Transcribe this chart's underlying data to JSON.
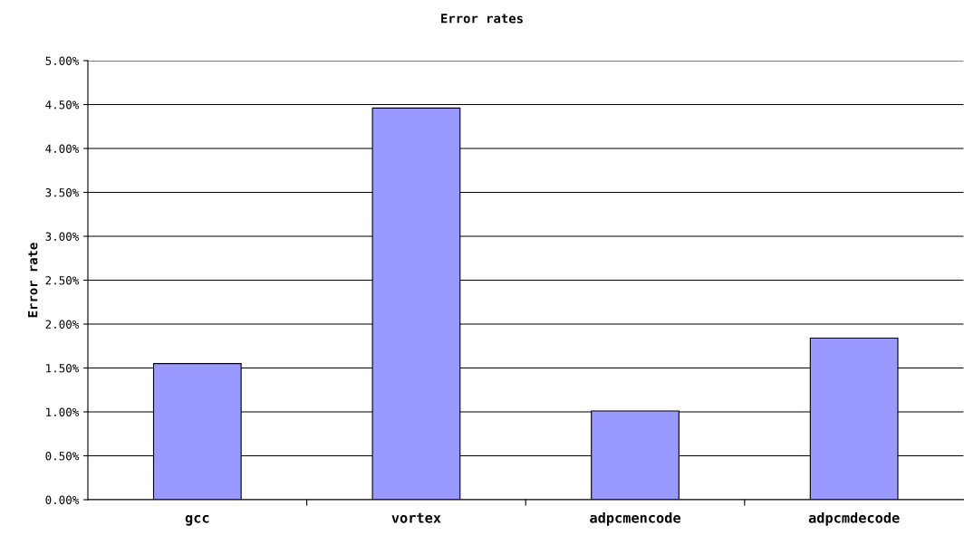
{
  "chart_data": {
    "type": "bar",
    "title": "Error rates",
    "ylabel": "Error rate",
    "categories": [
      "gcc",
      "vortex",
      "adpcmencode",
      "adpcmdecode"
    ],
    "values": [
      1.55,
      4.46,
      1.01,
      1.84
    ],
    "color": "#9999ff",
    "ylim": [
      0,
      5
    ],
    "yticks": [
      {
        "value": 0,
        "label": "0.00%"
      },
      {
        "value": 0.5,
        "label": "0.50%"
      },
      {
        "value": 1,
        "label": "1.00%"
      },
      {
        "value": 1.5,
        "label": "1.50%"
      },
      {
        "value": 2,
        "label": "2.00%"
      },
      {
        "value": 2.5,
        "label": "2.50%"
      },
      {
        "value": 3,
        "label": "3.00%"
      },
      {
        "value": 3.5,
        "label": "3.50%"
      },
      {
        "value": 4,
        "label": "4.00%"
      },
      {
        "value": 4.5,
        "label": "4.50%"
      },
      {
        "value": 5,
        "label": "5.00%"
      }
    ],
    "grid": "y"
  }
}
